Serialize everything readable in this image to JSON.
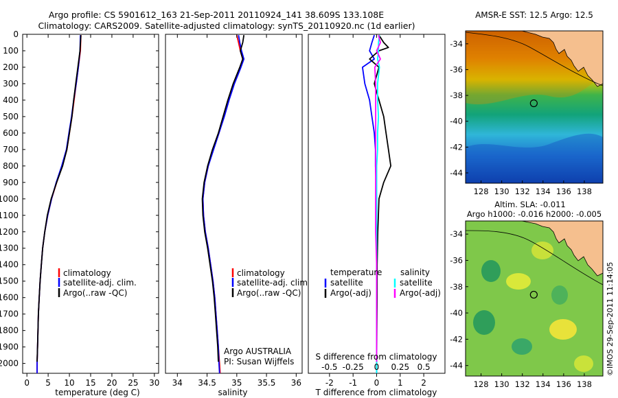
{
  "title_line1": "Argo profile: CS 5901612_163 21-Sep-2011 20110924_141 38.609S 133.108E",
  "title_line2": "Climatology: CARS2009. Satellite-adjusted climatology: synTS_20110920.nc (1d earlier)",
  "sst_title": "AMSR-E SST: 12.5 Argo: 12.5",
  "sla_title1": "Altim. SLA: -0.011",
  "sla_title2": "Argo h1000: -0.016 h2000: -0.005",
  "credit": "©IMOS 29-Sep-2011 11:14:05",
  "agency_line1": "Argo AUSTRALIA",
  "agency_line2": "PI: Susan Wijffels",
  "colors": {
    "climatology": "#ff0000",
    "satellite": "#0000ff",
    "argo": "#000000",
    "sal_satellite": "#00ffff",
    "sal_argo": "#ff00ff",
    "land": "#f5bf8e"
  },
  "chart_data": [
    {
      "id": "temperature",
      "type": "line",
      "xlabel": "temperature (deg C)",
      "xlim": [
        -1,
        31
      ],
      "xticks": [
        0,
        5,
        10,
        15,
        20,
        25,
        30
      ],
      "ylim": [
        2060,
        0
      ],
      "yticks": [
        0,
        100,
        200,
        300,
        400,
        500,
        600,
        700,
        800,
        900,
        1000,
        1100,
        1200,
        1300,
        1400,
        1500,
        1600,
        1700,
        1800,
        1900,
        2000
      ],
      "legend": [
        "climatology",
        "satellite-adj. clim.",
        "Argo(..raw -QC)"
      ],
      "series": [
        {
          "name": "climatology",
          "color": "#ff0000",
          "depth": [
            5,
            100,
            200,
            300,
            400,
            500,
            600,
            700,
            800,
            900,
            1000,
            1100,
            1200,
            1300,
            1400,
            1500,
            1600,
            1700,
            1800,
            1900,
            2000,
            2060
          ],
          "values": [
            12.7,
            12.6,
            12.1,
            11.6,
            11.1,
            10.6,
            10.0,
            9.4,
            8.3,
            7.0,
            5.8,
            4.9,
            4.2,
            3.7,
            3.4,
            3.1,
            2.9,
            2.7,
            2.6,
            2.5,
            2.4,
            2.4
          ]
        },
        {
          "name": "satellite-adj. clim.",
          "color": "#0000ff",
          "depth": [
            5,
            100,
            200,
            300,
            400,
            500,
            600,
            700,
            800,
            900,
            1000,
            1100,
            1200,
            1300,
            1400,
            1500,
            1600,
            1700,
            1800,
            1900,
            2000,
            2060
          ],
          "values": [
            12.6,
            12.5,
            12.1,
            11.6,
            11.0,
            10.5,
            9.9,
            9.3,
            8.2,
            6.9,
            5.8,
            4.9,
            4.2,
            3.7,
            3.4,
            3.1,
            2.9,
            2.7,
            2.6,
            2.5,
            2.4,
            2.4
          ]
        },
        {
          "name": "Argo(..raw -QC)",
          "color": "#000000",
          "depth": [
            5,
            100,
            200,
            300,
            400,
            500,
            600,
            700,
            800,
            900,
            1000,
            1100,
            1200,
            1300,
            1400,
            1500,
            1600,
            1700,
            1800,
            1900,
            1990
          ],
          "values": [
            12.7,
            12.5,
            12.0,
            11.5,
            11.0,
            10.6,
            10.0,
            9.4,
            8.4,
            7.0,
            5.7,
            4.8,
            4.2,
            3.7,
            3.4,
            3.1,
            2.9,
            2.7,
            2.6,
            2.5,
            2.4
          ]
        }
      ]
    },
    {
      "id": "salinity",
      "type": "line",
      "xlabel": "salinity",
      "xlim": [
        33.8,
        36.1
      ],
      "xticks": [
        34,
        34.5,
        35,
        35.5,
        36
      ],
      "ylim": [
        2060,
        0
      ],
      "legend": [
        "climatology",
        "satellite-adj. clim.",
        "Argo(..raw -QC)"
      ],
      "series": [
        {
          "name": "climatology",
          "color": "#ff0000",
          "depth": [
            5,
            50,
            100,
            150,
            200,
            300,
            400,
            500,
            600,
            700,
            800,
            900,
            1000,
            1100,
            1200,
            1300,
            1400,
            1500,
            1600,
            1700,
            1800,
            1900,
            2000,
            2060
          ],
          "values": [
            35.0,
            35.03,
            35.06,
            35.1,
            35.06,
            34.95,
            34.86,
            34.78,
            34.7,
            34.6,
            34.52,
            34.46,
            34.43,
            34.44,
            34.47,
            34.52,
            34.56,
            34.6,
            34.63,
            34.65,
            34.67,
            34.69,
            34.71,
            34.72
          ]
        },
        {
          "name": "satellite-adj. clim.",
          "color": "#0000ff",
          "depth": [
            5,
            50,
            100,
            150,
            200,
            300,
            400,
            500,
            600,
            700,
            800,
            900,
            1000,
            1100,
            1200,
            1300,
            1400,
            1500,
            1600,
            1700,
            1800,
            1900,
            2000,
            2060
          ],
          "values": [
            35.03,
            35.05,
            35.08,
            35.12,
            35.07,
            34.96,
            34.87,
            34.79,
            34.7,
            34.61,
            34.52,
            34.46,
            34.43,
            34.44,
            34.47,
            34.52,
            34.56,
            34.6,
            34.63,
            34.65,
            34.67,
            34.69,
            34.7,
            34.71
          ]
        },
        {
          "name": "Argo(..raw -QC)",
          "color": "#000000",
          "depth": [
            5,
            50,
            100,
            150,
            200,
            300,
            400,
            500,
            600,
            700,
            800,
            900,
            1000,
            1100,
            1200,
            1300,
            1400,
            1500,
            1600,
            1700,
            1800,
            1900,
            1990
          ],
          "values": [
            35.12,
            35.1,
            35.06,
            35.1,
            35.05,
            34.94,
            34.85,
            34.77,
            34.69,
            34.59,
            34.51,
            34.45,
            34.42,
            34.43,
            34.46,
            34.51,
            34.55,
            34.59,
            34.62,
            34.64,
            34.66,
            34.68,
            34.69
          ]
        }
      ]
    },
    {
      "id": "difference",
      "type": "line",
      "xlabel": "T difference from climatology",
      "x2label": "S difference from climatology",
      "xlim": [
        -2.9,
        2.9
      ],
      "xticks": [
        -2,
        -1,
        0,
        1,
        2
      ],
      "x2ticks": [
        "-0.5",
        "-0.25",
        "0",
        "0.25",
        "0.5"
      ],
      "ylim": [
        2060,
        0
      ],
      "legend": {
        "temperature": [
          "satellite",
          "Argo(-adj)"
        ],
        "salinity": [
          "satellite",
          "Argo(-adj)"
        ],
        "header_left": "temperature",
        "header_right": "salinity"
      },
      "series": [
        {
          "name": "temperature satellite",
          "color": "#0000ff",
          "depth": [
            5,
            50,
            100,
            150,
            200,
            300,
            400,
            500,
            600,
            700,
            800,
            1000,
            1200,
            1400,
            1600,
            1800,
            2000,
            2060
          ],
          "values": [
            -0.1,
            -0.2,
            -0.3,
            -0.1,
            -0.6,
            -0.5,
            -0.3,
            -0.2,
            -0.1,
            -0.05,
            -0.05,
            0,
            0,
            0,
            0,
            0,
            0,
            0
          ]
        },
        {
          "name": "temperature Argo(-adj)",
          "color": "#000000",
          "depth": [
            5,
            50,
            80,
            100,
            150,
            200,
            300,
            400,
            500,
            600,
            700,
            800,
            900,
            1000,
            1200,
            1400,
            1600,
            1800,
            1990
          ],
          "values": [
            0.1,
            0.3,
            0.5,
            0.1,
            -0.3,
            0.1,
            -0.1,
            0.1,
            0.3,
            0.4,
            0.5,
            0.6,
            0.3,
            0.1,
            0.05,
            0.02,
            0.02,
            0.01,
            0
          ]
        },
        {
          "name": "salinity satellite",
          "color": "#00ffff",
          "depth": [
            5,
            50,
            100,
            150,
            200,
            300,
            400,
            500,
            600,
            700,
            800,
            1000,
            1200,
            1400,
            1600,
            1800,
            2000,
            2060
          ],
          "values": [
            0.03,
            0.02,
            0.02,
            0.01,
            0.03,
            0.01,
            0.01,
            0.02,
            0.01,
            0.01,
            0.0,
            0.0,
            0.0,
            0.0,
            0.0,
            0.0,
            0.0,
            0.0
          ]
        },
        {
          "name": "salinity Argo(-adj)",
          "color": "#ff00ff",
          "depth": [
            5,
            50,
            100,
            150,
            200,
            300,
            400,
            500,
            600,
            700,
            800,
            1000,
            1200,
            1400,
            1600,
            1800,
            1990
          ],
          "values": [
            0.02,
            0.04,
            0.0,
            0.04,
            -0.02,
            -0.01,
            -0.01,
            -0.01,
            -0.01,
            -0.01,
            -0.01,
            -0.01,
            -0.01,
            0.0,
            0.0,
            0.0,
            0.0
          ]
        }
      ]
    },
    {
      "id": "sst_map",
      "type": "heatmap",
      "title": "AMSR-E SST: 12.5 Argo: 12.5",
      "xlim": [
        126.5,
        139.8
      ],
      "ylim": [
        -44.8,
        -33
      ],
      "xticks": [
        128,
        130,
        132,
        134,
        136,
        138
      ],
      "yticks": [
        -34,
        -36,
        -38,
        -40,
        -42,
        -44
      ],
      "argo_position": [
        133.108,
        -38.609
      ]
    },
    {
      "id": "sla_map",
      "type": "heatmap",
      "title": "Altim. SLA: -0.011",
      "xlim": [
        126.5,
        139.8
      ],
      "ylim": [
        -44.8,
        -33
      ],
      "xticks": [
        128,
        130,
        132,
        134,
        136,
        138
      ],
      "yticks": [
        -34,
        -36,
        -38,
        -40,
        -42,
        -44
      ],
      "argo_position": [
        133.108,
        -38.609
      ]
    }
  ]
}
